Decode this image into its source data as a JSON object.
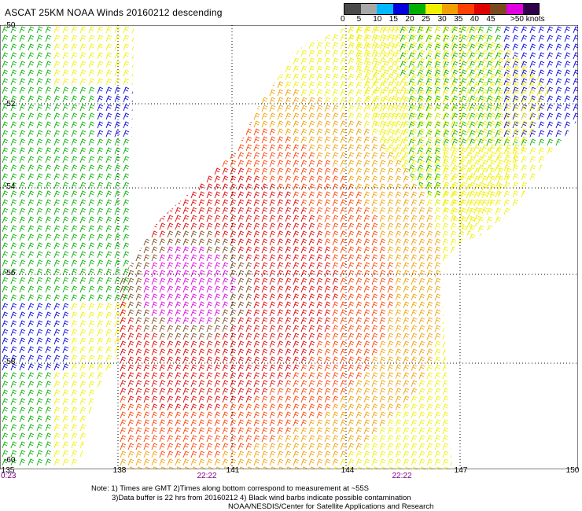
{
  "title": "ASCAT 25KM NOAA Winds 20160212 descending",
  "colorbar": {
    "labels": [
      "0",
      "5",
      "10",
      "15",
      "20",
      "25",
      "30",
      "35",
      "40",
      "45",
      ">50 knots"
    ],
    "colors": [
      "#4a4a4a",
      "#a8a8a8",
      "#00b8ff",
      "#0000e0",
      "#00b000",
      "#f0f000",
      "#f0a000",
      "#ff4000",
      "#e00000",
      "#7a4a1e",
      "#e000e0",
      "#30004a"
    ]
  },
  "map": {
    "lat_labels": [
      "-50",
      "-52",
      "-54",
      "-56",
      "-58",
      "-60"
    ],
    "lon_labels": [
      "135",
      "138",
      "141",
      "144",
      "147",
      "150"
    ],
    "time_labels": [
      "0:23",
      "22:22",
      "22:22"
    ]
  },
  "notes": [
    "Note: 1) Times are GMT 2)Times along bottom correspond to measurement at ~55S",
    "3)Data buffer is 22 hrs from 20160212 4) Black wind barbs indicate possible contamination",
    "NOAA/NESDIS/Center for Satellite Applications and Research"
  ]
}
